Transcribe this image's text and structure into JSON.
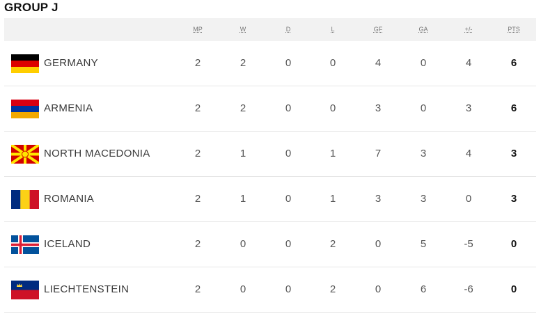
{
  "group": {
    "title": "GROUP J"
  },
  "columns": [
    "MP",
    "W",
    "D",
    "L",
    "GF",
    "GA",
    "+/-",
    "PTS"
  ],
  "teams": [
    {
      "name": "GERMANY",
      "flag": "germany-flag",
      "stats": [
        "2",
        "2",
        "0",
        "0",
        "4",
        "0",
        "4",
        "6"
      ]
    },
    {
      "name": "ARMENIA",
      "flag": "armenia-flag",
      "stats": [
        "2",
        "2",
        "0",
        "0",
        "3",
        "0",
        "3",
        "6"
      ]
    },
    {
      "name": "NORTH MACEDONIA",
      "flag": "north-macedonia-flag",
      "stats": [
        "2",
        "1",
        "0",
        "1",
        "7",
        "3",
        "4",
        "3"
      ]
    },
    {
      "name": "ROMANIA",
      "flag": "romania-flag",
      "stats": [
        "2",
        "1",
        "0",
        "1",
        "3",
        "3",
        "0",
        "3"
      ]
    },
    {
      "name": "ICELAND",
      "flag": "iceland-flag",
      "stats": [
        "2",
        "0",
        "0",
        "2",
        "0",
        "5",
        "-5",
        "0"
      ]
    },
    {
      "name": "LIECHTENSTEIN",
      "flag": "liechtenstein-flag",
      "stats": [
        "2",
        "0",
        "0",
        "2",
        "0",
        "6",
        "-6",
        "0"
      ]
    }
  ],
  "colors": {
    "header_bg": "#f2f2f2",
    "row_divider": "#e6e6e6",
    "text": "#3a3a3a"
  }
}
